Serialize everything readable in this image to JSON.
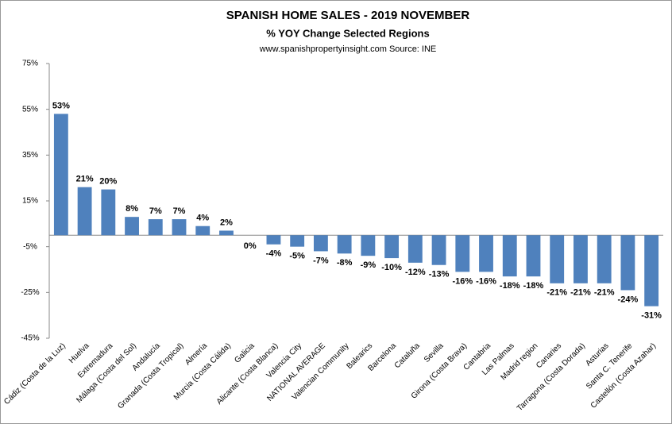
{
  "chart_data": {
    "type": "bar",
    "title": "SPANISH HOME SALES - 2019 NOVEMBER",
    "subtitle": "% YOY Change Selected Regions",
    "source": "www.spanishpropertyinsight.com Source: INE",
    "categories": [
      "Cádiz (Costa de la Luz)",
      "Huelva",
      "Extremadura",
      "Málaga (Costa del Sol)",
      "Andalucía",
      "Granada (Costa Tropical)",
      "Almería",
      "Murcia (Costa Cálida)",
      "Galicia",
      "Alicante (Costa Blanca)",
      "Valencia City",
      "NATIONAL AVERAGE",
      "Valencian Community",
      "Balearics",
      "Barcelona",
      "Cataluña",
      "Sevilla",
      "Girona (Costa Brava)",
      "Cantabria",
      "Las Palmas",
      "Madrid region",
      "Canaries",
      "Tarragona (Costa Dorada)",
      "Asturias",
      "Santa C. Tenerife",
      "Castellón (Costa Azahar)"
    ],
    "values": [
      53,
      21,
      20,
      8,
      7,
      7,
      4,
      2,
      0,
      -4,
      -5,
      -7,
      -8,
      -9,
      -10,
      -12,
      -13,
      -16,
      -16,
      -18,
      -18,
      -21,
      -21,
      -21,
      -24,
      -31
    ],
    "value_labels": [
      "53%",
      "21%",
      "20%",
      "8%",
      "7%",
      "7%",
      "4%",
      "2%",
      "0%",
      "-4%",
      "-5%",
      "-7%",
      "-8%",
      "-9%",
      "-10%",
      "-12%",
      "-13%",
      "-16%",
      "-16%",
      "-18%",
      "-18%",
      "-21%",
      "-21%",
      "-21%",
      "-24%",
      "-31%"
    ],
    "color": "#4f81bd",
    "ylim": [
      -45,
      75
    ],
    "yticks": [
      {
        "value": 75,
        "label": "75%"
      },
      {
        "value": 55,
        "label": "55%"
      },
      {
        "value": 35,
        "label": "35%"
      },
      {
        "value": 15,
        "label": "15%"
      },
      {
        "value": -5,
        "label": "-5%"
      },
      {
        "value": -25,
        "label": "-25%"
      },
      {
        "value": -45,
        "label": "-45%"
      }
    ],
    "grid": false
  }
}
